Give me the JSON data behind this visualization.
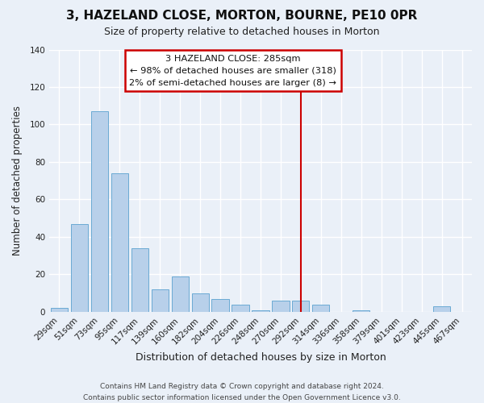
{
  "title": "3, HAZELAND CLOSE, MORTON, BOURNE, PE10 0PR",
  "subtitle": "Size of property relative to detached houses in Morton",
  "xlabel": "Distribution of detached houses by size in Morton",
  "ylabel": "Number of detached properties",
  "bar_color": "#b8d0ea",
  "bar_edge_color": "#6aaad4",
  "background_color": "#eaf0f8",
  "grid_color": "#ffffff",
  "categories": [
    "29sqm",
    "51sqm",
    "73sqm",
    "95sqm",
    "117sqm",
    "139sqm",
    "160sqm",
    "182sqm",
    "204sqm",
    "226sqm",
    "248sqm",
    "270sqm",
    "292sqm",
    "314sqm",
    "336sqm",
    "358sqm",
    "379sqm",
    "401sqm",
    "423sqm",
    "445sqm",
    "467sqm"
  ],
  "values": [
    2,
    47,
    107,
    74,
    34,
    12,
    19,
    10,
    7,
    4,
    1,
    6,
    6,
    4,
    0,
    1,
    0,
    0,
    0,
    3,
    0
  ],
  "ylim": [
    0,
    140
  ],
  "yticks": [
    0,
    20,
    40,
    60,
    80,
    100,
    120,
    140
  ],
  "vline_index": 12,
  "vline_color": "#cc0000",
  "annotation_title": "3 HAZELAND CLOSE: 285sqm",
  "annotation_line1": "← 98% of detached houses are smaller (318)",
  "annotation_line2": "2% of semi-detached houses are larger (8) →",
  "annotation_box_color": "#ffffff",
  "annotation_box_edge": "#cc0000",
  "footer1": "Contains HM Land Registry data © Crown copyright and database right 2024.",
  "footer2": "Contains public sector information licensed under the Open Government Licence v3.0.",
  "title_fontsize": 11,
  "subtitle_fontsize": 9,
  "xlabel_fontsize": 9,
  "ylabel_fontsize": 8.5,
  "tick_fontsize": 7.5,
  "footer_fontsize": 6.5
}
